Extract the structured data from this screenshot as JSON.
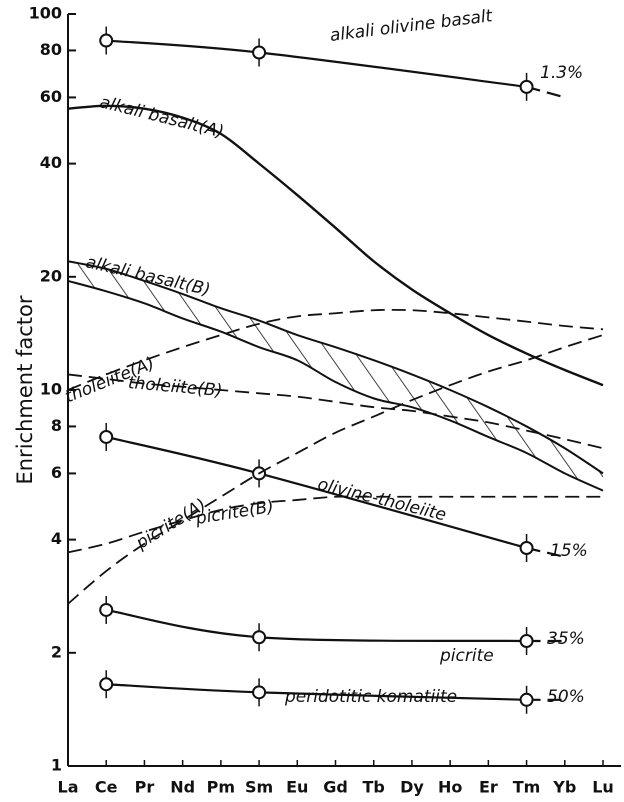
{
  "chart_data": {
    "type": "line",
    "y_label": "Enrichment factor",
    "log_y": true,
    "ylim": [
      1,
      100
    ],
    "yticks": [
      1,
      2,
      4,
      6,
      8,
      10,
      20,
      40,
      60,
      80,
      100
    ],
    "categories": [
      "La",
      "Ce",
      "Pr",
      "Nd",
      "Pm",
      "Sm",
      "Eu",
      "Gd",
      "Tb",
      "Dy",
      "Ho",
      "Er",
      "Tm",
      "Yb",
      "Lu"
    ],
    "color": "#111111",
    "series": [
      {
        "name": "alkali olivine basalt",
        "style": "solid",
        "markers": true,
        "dashed_tail": true,
        "values": [
          null,
          85,
          null,
          null,
          null,
          79,
          null,
          null,
          null,
          null,
          null,
          null,
          64,
          60,
          null
        ]
      },
      {
        "name": "alkali basalt(A)",
        "style": "solid",
        "values": [
          56,
          57,
          56,
          53,
          48,
          40,
          33,
          27,
          22,
          18.5,
          16,
          14,
          12.5,
          11.3,
          10.3
        ]
      },
      {
        "name": "alkali basalt(B)",
        "style": "band",
        "values": [
          22,
          21,
          19.5,
          18,
          16.5,
          15.3,
          14,
          13,
          12,
          11,
          10,
          9,
          8,
          7,
          6
        ],
        "low_values": [
          19.5,
          18.3,
          17,
          15.5,
          14.3,
          13,
          12,
          10.5,
          9.5,
          9,
          8.3,
          7.5,
          6.8,
          6,
          5.4
        ]
      },
      {
        "name": "tholeiite(A)",
        "style": "dashed",
        "values": [
          10,
          11,
          12,
          13,
          14,
          15,
          15.7,
          16,
          16.3,
          16.3,
          16,
          15.6,
          15.2,
          14.8,
          14.5
        ]
      },
      {
        "name": "tholeiite(B)",
        "style": "dashed",
        "values": [
          11,
          10.7,
          10.4,
          10.2,
          10,
          9.8,
          9.6,
          9.3,
          9,
          8.8,
          8.5,
          8.2,
          7.8,
          7.4,
          7
        ]
      },
      {
        "name": "olivine-tholeiite",
        "style": "solid",
        "markers": true,
        "dashed_tail": true,
        "values": [
          null,
          7.5,
          null,
          null,
          null,
          6,
          null,
          null,
          null,
          null,
          null,
          null,
          3.8,
          3.6,
          null
        ]
      },
      {
        "name": "picrite(A)",
        "style": "dashed",
        "values": [
          2.7,
          3.3,
          3.9,
          4.5,
          5.2,
          6,
          6.8,
          7.7,
          8.5,
          9.4,
          10.3,
          11.2,
          12,
          13,
          14
        ]
      },
      {
        "name": "picrite(B)",
        "style": "dashed",
        "values": [
          3.7,
          3.9,
          4.2,
          4.5,
          4.8,
          5,
          5.1,
          5.2,
          5.2,
          5.2,
          5.2,
          5.2,
          5.2,
          5.2,
          5.2
        ]
      },
      {
        "name": "picrite",
        "style": "solid",
        "markers": true,
        "dashed_tail": true,
        "values": [
          null,
          2.6,
          null,
          null,
          null,
          2.2,
          null,
          null,
          null,
          null,
          null,
          null,
          2.15,
          2.15,
          null
        ]
      },
      {
        "name": "peridotitic komatiite",
        "style": "solid",
        "markers": true,
        "dashed_tail": true,
        "values": [
          null,
          1.65,
          null,
          null,
          null,
          1.57,
          null,
          null,
          null,
          null,
          null,
          null,
          1.5,
          1.5,
          null
        ]
      }
    ],
    "annotations": [
      "1.3%",
      "15%",
      "35%",
      "50%"
    ]
  }
}
